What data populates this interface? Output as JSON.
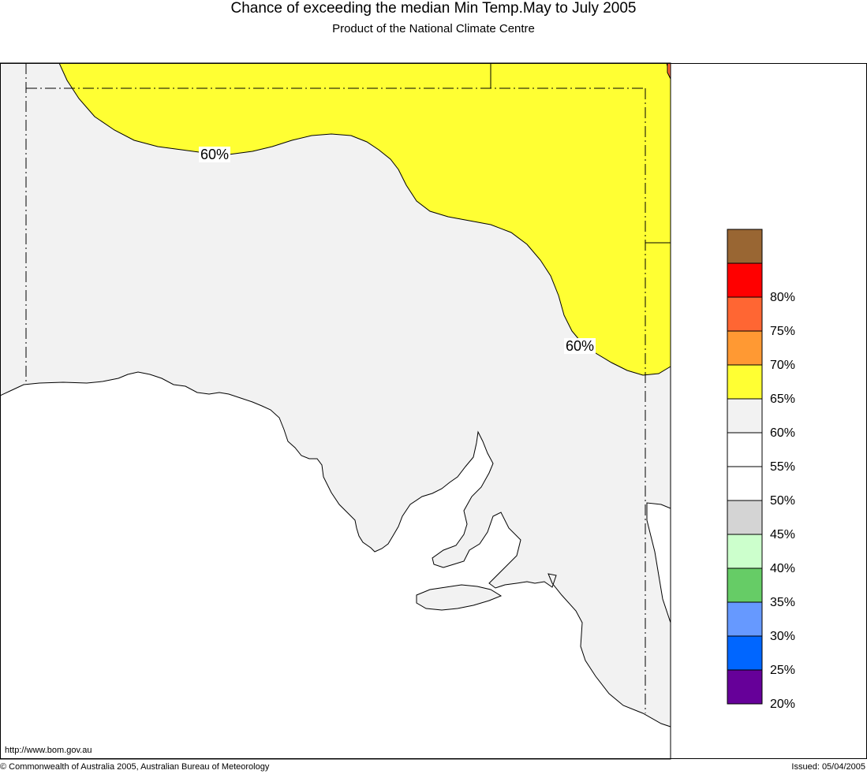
{
  "header": {
    "title": "Chance of exceeding the median Min Temp.May to July 2005",
    "subtitle": "Product of the National Climate Centre"
  },
  "map": {
    "contour_labels": [
      "60%",
      "60%"
    ],
    "colors": {
      "land_base": "#f2f2f2",
      "zone_60": "#ffff33",
      "zone_70": "#ff6633",
      "sea": "#ffffff",
      "border": "#000000"
    }
  },
  "legend": {
    "items": [
      {
        "label": "",
        "color": "#996633"
      },
      {
        "label": "80%",
        "color": "#ff0000"
      },
      {
        "label": "75%",
        "color": "#ff6633"
      },
      {
        "label": "70%",
        "color": "#ff9933"
      },
      {
        "label": "65%",
        "color": "#ffff33"
      },
      {
        "label": "60%",
        "color": "#f2f2f2"
      },
      {
        "label": "55%",
        "color": "#ffffff"
      },
      {
        "label": "50%",
        "color": "#ffffff"
      },
      {
        "label": "45%",
        "color": "#d4d4d4"
      },
      {
        "label": "40%",
        "color": "#ccffcc"
      },
      {
        "label": "35%",
        "color": "#66cc66"
      },
      {
        "label": "30%",
        "color": "#6699ff"
      },
      {
        "label": "25%",
        "color": "#0066ff"
      },
      {
        "label": "20%",
        "color": "#660099"
      }
    ]
  },
  "footer": {
    "url": "http://www.bom.gov.au",
    "copyright": "© Commonwealth of Australia 2005, Australian Bureau of Meteorology",
    "issued": "Issued: 05/04/2005"
  }
}
